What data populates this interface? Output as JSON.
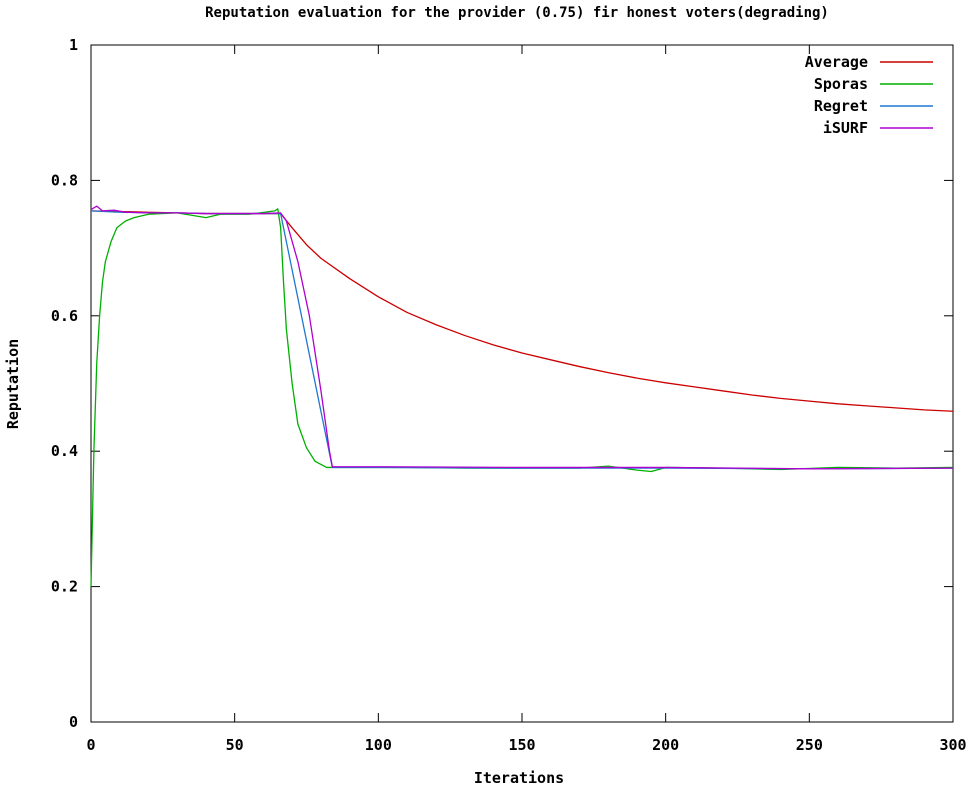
{
  "chart_data": {
    "type": "line",
    "title": "Reputation evaluation for the provider (0.75) fir honest voters(degrading)",
    "xlabel": "Iterations",
    "ylabel": "Reputation",
    "xlim": [
      0,
      300
    ],
    "ylim": [
      0,
      1
    ],
    "x_ticks": [
      0,
      50,
      100,
      150,
      200,
      250,
      300
    ],
    "y_ticks": [
      0,
      0.2,
      0.4,
      0.6,
      0.8,
      1
    ],
    "y_tick_labels": [
      "0",
      "0.2",
      "0.4",
      "0.6",
      "0.8",
      "1"
    ],
    "grid": false,
    "legend_position": "top-right",
    "series": [
      {
        "name": "Average",
        "color": "#cc0000",
        "points": [
          [
            0,
            0.755
          ],
          [
            10,
            0.754
          ],
          [
            20,
            0.753
          ],
          [
            30,
            0.752
          ],
          [
            40,
            0.751
          ],
          [
            50,
            0.751
          ],
          [
            60,
            0.751
          ],
          [
            66,
            0.751
          ],
          [
            70,
            0.73
          ],
          [
            75,
            0.705
          ],
          [
            80,
            0.685
          ],
          [
            90,
            0.655
          ],
          [
            100,
            0.628
          ],
          [
            110,
            0.605
          ],
          [
            120,
            0.587
          ],
          [
            130,
            0.571
          ],
          [
            140,
            0.557
          ],
          [
            150,
            0.545
          ],
          [
            160,
            0.535
          ],
          [
            170,
            0.525
          ],
          [
            180,
            0.516
          ],
          [
            190,
            0.508
          ],
          [
            200,
            0.501
          ],
          [
            210,
            0.495
          ],
          [
            220,
            0.489
          ],
          [
            230,
            0.483
          ],
          [
            240,
            0.478
          ],
          [
            250,
            0.474
          ],
          [
            260,
            0.47
          ],
          [
            270,
            0.467
          ],
          [
            280,
            0.464
          ],
          [
            290,
            0.461
          ],
          [
            300,
            0.459
          ]
        ]
      },
      {
        "name": "Sporas",
        "color": "#00b000",
        "points": [
          [
            0,
            0.2
          ],
          [
            1,
            0.4
          ],
          [
            2,
            0.53
          ],
          [
            3,
            0.6
          ],
          [
            4,
            0.65
          ],
          [
            5,
            0.68
          ],
          [
            7,
            0.71
          ],
          [
            9,
            0.73
          ],
          [
            12,
            0.74
          ],
          [
            15,
            0.745
          ],
          [
            20,
            0.75
          ],
          [
            30,
            0.752
          ],
          [
            40,
            0.745
          ],
          [
            45,
            0.75
          ],
          [
            55,
            0.75
          ],
          [
            64,
            0.755
          ],
          [
            65,
            0.758
          ],
          [
            66,
            0.73
          ],
          [
            67,
            0.65
          ],
          [
            68,
            0.58
          ],
          [
            70,
            0.5
          ],
          [
            72,
            0.44
          ],
          [
            75,
            0.405
          ],
          [
            78,
            0.385
          ],
          [
            82,
            0.376
          ],
          [
            90,
            0.376
          ],
          [
            110,
            0.376
          ],
          [
            130,
            0.375
          ],
          [
            150,
            0.375
          ],
          [
            170,
            0.375
          ],
          [
            180,
            0.378
          ],
          [
            190,
            0.372
          ],
          [
            195,
            0.37
          ],
          [
            200,
            0.376
          ],
          [
            220,
            0.375
          ],
          [
            240,
            0.373
          ],
          [
            260,
            0.376
          ],
          [
            280,
            0.375
          ],
          [
            300,
            0.376
          ]
        ]
      },
      {
        "name": "Regret",
        "color": "#1f77d0",
        "points": [
          [
            0,
            0.755
          ],
          [
            10,
            0.753
          ],
          [
            20,
            0.752
          ],
          [
            30,
            0.752
          ],
          [
            40,
            0.751
          ],
          [
            50,
            0.751
          ],
          [
            60,
            0.751
          ],
          [
            66,
            0.751
          ],
          [
            84,
            0.376
          ],
          [
            100,
            0.376
          ],
          [
            150,
            0.375
          ],
          [
            200,
            0.375
          ],
          [
            250,
            0.374
          ],
          [
            300,
            0.375
          ]
        ]
      },
      {
        "name": "iSURF",
        "color": "#b000d0",
        "points": [
          [
            0,
            0.757
          ],
          [
            2,
            0.762
          ],
          [
            4,
            0.755
          ],
          [
            8,
            0.756
          ],
          [
            12,
            0.753
          ],
          [
            20,
            0.752
          ],
          [
            30,
            0.752
          ],
          [
            40,
            0.751
          ],
          [
            50,
            0.751
          ],
          [
            60,
            0.751
          ],
          [
            66,
            0.752
          ],
          [
            68,
            0.74
          ],
          [
            72,
            0.68
          ],
          [
            76,
            0.6
          ],
          [
            80,
            0.49
          ],
          [
            83,
            0.4
          ],
          [
            84,
            0.377
          ],
          [
            100,
            0.377
          ],
          [
            150,
            0.376
          ],
          [
            200,
            0.376
          ],
          [
            250,
            0.374
          ],
          [
            300,
            0.375
          ]
        ]
      }
    ]
  }
}
